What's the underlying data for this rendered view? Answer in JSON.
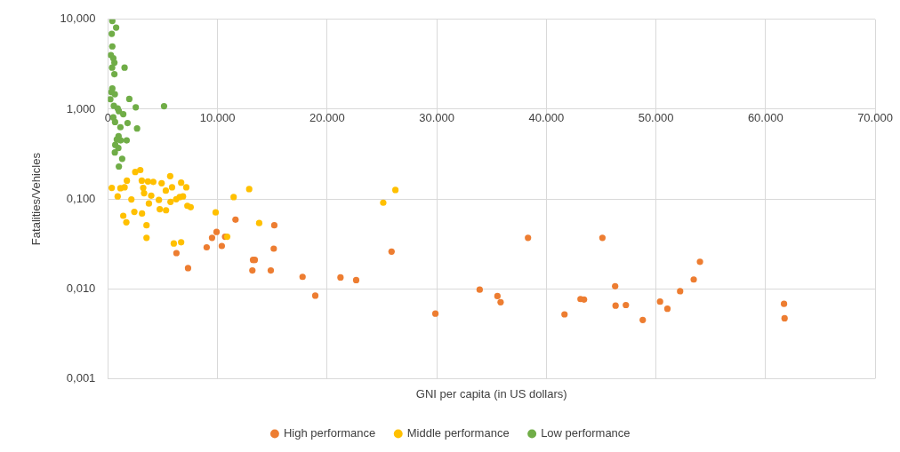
{
  "chart_data": {
    "type": "scatter",
    "xlabel": "GNI per capita (in US dollars)",
    "ylabel": "Fatalities/Vehicles",
    "log": "y",
    "grid": true,
    "legend": "bottom",
    "marker": "circle",
    "xlim": [
      0,
      70000
    ],
    "xticks": [
      0,
      {
        "value": 10000,
        "label": "10.000"
      },
      {
        "value": 20000,
        "label": "20.000"
      },
      {
        "value": 30000,
        "label": "30.000"
      },
      {
        "value": 40000,
        "label": "40.000"
      },
      {
        "value": 50000,
        "label": "50.000"
      },
      {
        "value": 60000,
        "label": "60.000"
      },
      {
        "value": 70000,
        "label": "70.000"
      }
    ],
    "ylim": [
      0.001,
      10
    ],
    "yticks": [
      {
        "value": 0.001,
        "label": "0,001"
      },
      {
        "value": 0.01,
        "label": "0,010"
      },
      {
        "value": 0.1,
        "label": "0,100"
      },
      {
        "value": 1,
        "label": "1,000"
      },
      {
        "value": 10,
        "label": "10,000"
      }
    ],
    "series": [
      {
        "name": "High performance",
        "color": "#ed7d31",
        "x": [
          11640,
          15180,
          9910,
          9500,
          10690,
          10390,
          9010,
          15130,
          6250,
          13240,
          13400,
          13180,
          14860,
          7310,
          17760,
          21220,
          22650,
          18920,
          25880,
          29880,
          33920,
          35540,
          35830,
          38330,
          45120,
          41660,
          43120,
          43440,
          46280,
          46320,
          47260,
          48800,
          50380,
          51050,
          52210,
          53450,
          54020,
          61690,
          61740
        ],
        "values": [
          0.059,
          0.051,
          0.043,
          0.037,
          0.038,
          0.03,
          0.029,
          0.028,
          0.025,
          0.021,
          0.021,
          0.016,
          0.016,
          0.017,
          0.0136,
          0.0134,
          0.0125,
          0.0084,
          0.026,
          0.0053,
          0.0098,
          0.0083,
          0.0071,
          0.037,
          0.037,
          0.0052,
          0.0077,
          0.0076,
          0.0107,
          0.0065,
          0.0066,
          0.0045,
          0.0072,
          0.006,
          0.0094,
          0.0127,
          0.02,
          0.0068,
          0.0047
        ]
      },
      {
        "name": "Middle performance",
        "color": "#ffc000",
        "x": [
          2490,
          2950,
          5680,
          1730,
          3090,
          3650,
          4140,
          4900,
          6680,
          350,
          1140,
          1520,
          3220,
          5850,
          7150,
          5280,
          3300,
          3950,
          890,
          2140,
          4650,
          3740,
          5710,
          6230,
          6550,
          6850,
          7250,
          7550,
          4730,
          5300,
          2410,
          3110,
          1400,
          1680,
          3520,
          3520,
          6010,
          6680,
          9830,
          11470,
          12890,
          13800,
          10880,
          25120,
          26230
        ],
        "values": [
          0.2,
          0.21,
          0.18,
          0.16,
          0.16,
          0.157,
          0.155,
          0.15,
          0.152,
          0.133,
          0.132,
          0.135,
          0.133,
          0.135,
          0.135,
          0.124,
          0.116,
          0.109,
          0.107,
          0.099,
          0.0975,
          0.089,
          0.093,
          0.0996,
          0.105,
          0.107,
          0.084,
          0.081,
          0.077,
          0.075,
          0.072,
          0.069,
          0.065,
          0.055,
          0.051,
          0.037,
          0.032,
          0.033,
          0.071,
          0.105,
          0.129,
          0.054,
          0.038,
          0.091,
          0.126
        ]
      },
      {
        "name": "Low performance",
        "color": "#70ad47",
        "x": [
          400,
          750,
          350,
          400,
          270,
          490,
          590,
          380,
          1520,
          590,
          400,
          320,
          630,
          220,
          1950,
          540,
          890,
          1000,
          2540,
          5120,
          1400,
          490,
          650,
          1790,
          1140,
          2660,
          970,
          810,
          1710,
          1160,
          670,
          950,
          630,
          1300,
          1000
        ],
        "values": [
          9.6,
          8.1,
          6.9,
          5.0,
          4.0,
          3.7,
          3.3,
          2.9,
          2.9,
          2.45,
          1.7,
          1.55,
          1.47,
          1.29,
          1.3,
          1.09,
          1.02,
          0.95,
          1.05,
          1.08,
          0.88,
          0.81,
          0.72,
          0.7,
          0.63,
          0.61,
          0.5,
          0.46,
          0.45,
          0.45,
          0.4,
          0.37,
          0.33,
          0.28,
          0.23
        ]
      }
    ]
  }
}
